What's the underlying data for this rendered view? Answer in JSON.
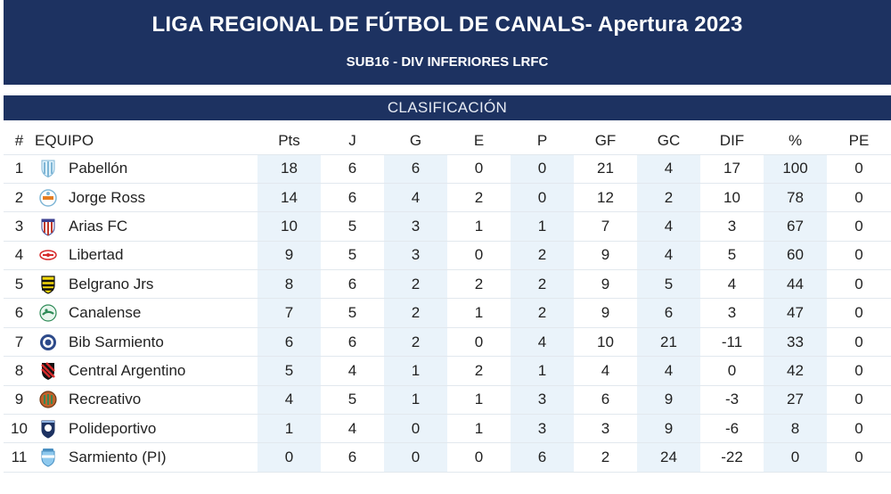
{
  "header": {
    "title": "LIGA REGIONAL DE FÚTBOL DE CANALS- Apertura 2023",
    "subtitle": "SUB16 - DIV INFERIORES LRFC"
  },
  "section": {
    "label": "CLASIFICACIÓN"
  },
  "columns": [
    "#",
    "EQUIPO",
    "Pts",
    "J",
    "G",
    "E",
    "P",
    "GF",
    "GC",
    "DIF",
    "%",
    "PE"
  ],
  "rows": [
    {
      "pos": "1",
      "team": "Pabellón",
      "crest": "pabellon-crest-icon",
      "pts": "18",
      "j": "6",
      "g": "6",
      "e": "0",
      "p": "0",
      "gf": "21",
      "gc": "4",
      "dif": "17",
      "pct": "100",
      "pe": "0"
    },
    {
      "pos": "2",
      "team": "Jorge Ross",
      "crest": "jorge-ross-crest-icon",
      "pts": "14",
      "j": "6",
      "g": "4",
      "e": "2",
      "p": "0",
      "gf": "12",
      "gc": "2",
      "dif": "10",
      "pct": "78",
      "pe": "0"
    },
    {
      "pos": "3",
      "team": "Arias FC",
      "crest": "arias-fc-crest-icon",
      "pts": "10",
      "j": "5",
      "g": "3",
      "e": "1",
      "p": "1",
      "gf": "7",
      "gc": "4",
      "dif": "3",
      "pct": "67",
      "pe": "0"
    },
    {
      "pos": "4",
      "team": "Libertad",
      "crest": "libertad-crest-icon",
      "pts": "9",
      "j": "5",
      "g": "3",
      "e": "0",
      "p": "2",
      "gf": "9",
      "gc": "4",
      "dif": "5",
      "pct": "60",
      "pe": "0"
    },
    {
      "pos": "5",
      "team": "Belgrano Jrs",
      "crest": "belgrano-jrs-crest-icon",
      "pts": "8",
      "j": "6",
      "g": "2",
      "e": "2",
      "p": "2",
      "gf": "9",
      "gc": "5",
      "dif": "4",
      "pct": "44",
      "pe": "0"
    },
    {
      "pos": "6",
      "team": "Canalense",
      "crest": "canalense-crest-icon",
      "pts": "7",
      "j": "5",
      "g": "2",
      "e": "1",
      "p": "2",
      "gf": "9",
      "gc": "6",
      "dif": "3",
      "pct": "47",
      "pe": "0"
    },
    {
      "pos": "7",
      "team": "Bib Sarmiento",
      "crest": "bib-sarmiento-crest-icon",
      "pts": "6",
      "j": "6",
      "g": "2",
      "e": "0",
      "p": "4",
      "gf": "10",
      "gc": "21",
      "dif": "-11",
      "pct": "33",
      "pe": "0"
    },
    {
      "pos": "8",
      "team": "Central Argentino",
      "crest": "central-argentino-crest-icon",
      "pts": "5",
      "j": "4",
      "g": "1",
      "e": "2",
      "p": "1",
      "gf": "4",
      "gc": "4",
      "dif": "0",
      "pct": "42",
      "pe": "0"
    },
    {
      "pos": "9",
      "team": "Recreativo",
      "crest": "recreativo-crest-icon",
      "pts": "4",
      "j": "5",
      "g": "1",
      "e": "1",
      "p": "3",
      "gf": "6",
      "gc": "9",
      "dif": "-3",
      "pct": "27",
      "pe": "0"
    },
    {
      "pos": "10",
      "team": "Polideportivo",
      "crest": "polideportivo-crest-icon",
      "pts": "1",
      "j": "4",
      "g": "0",
      "e": "1",
      "p": "3",
      "gf": "3",
      "gc": "9",
      "dif": "-6",
      "pct": "8",
      "pe": "0"
    },
    {
      "pos": "11",
      "team": "Sarmiento (PI)",
      "crest": "sarmiento-pi-crest-icon",
      "pts": "0",
      "j": "6",
      "g": "0",
      "e": "0",
      "p": "6",
      "gf": "2",
      "gc": "24",
      "dif": "-22",
      "pct": "0",
      "pe": "0"
    }
  ],
  "colors": {
    "header_bg": "#1d3261",
    "column_shade": "#eaf3fa",
    "row_divider": "#e2e8ee"
  }
}
